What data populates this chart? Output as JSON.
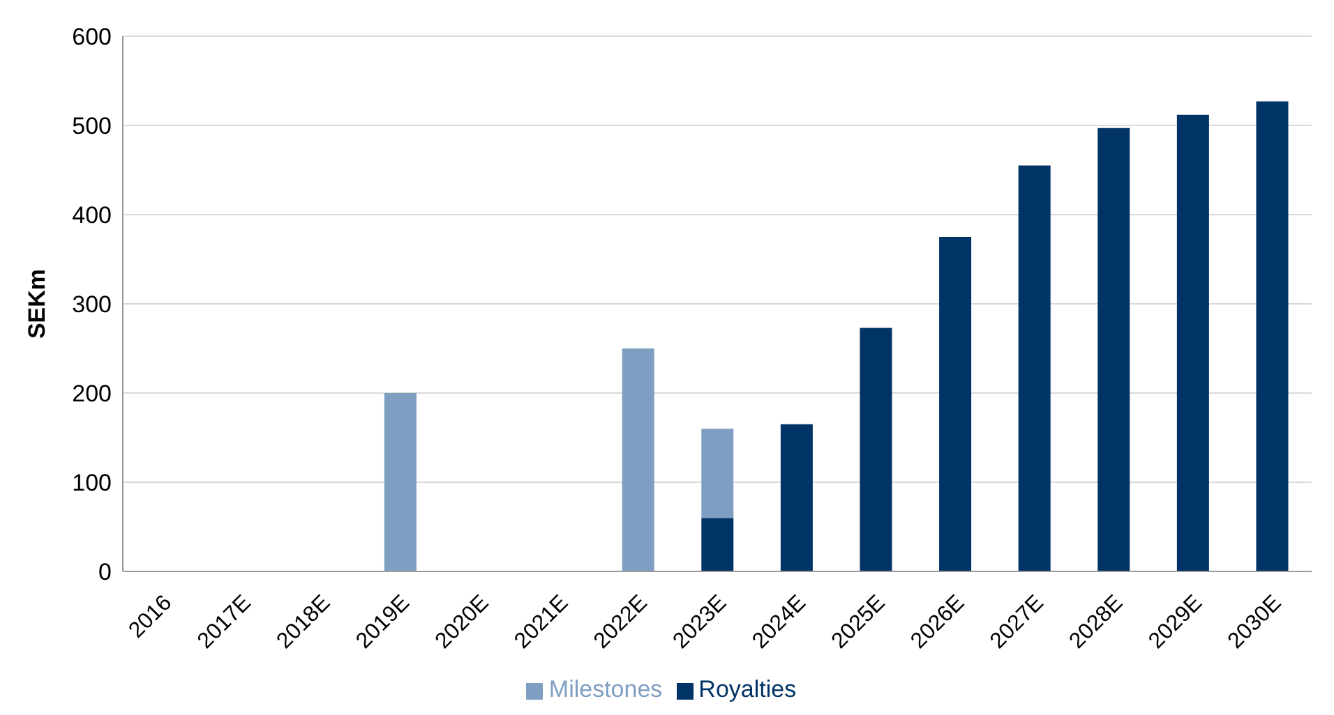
{
  "chart_data": {
    "type": "bar",
    "ylabel": "SEKm",
    "categories": [
      "2016",
      "2017E",
      "2018E",
      "2019E",
      "2020E",
      "2021E",
      "2022E",
      "2023E",
      "2024E",
      "2025E",
      "2026E",
      "2027E",
      "2028E",
      "2029E",
      "2030E"
    ],
    "series": [
      {
        "name": "Royalties",
        "color": "#003366",
        "values": [
          0,
          0,
          0,
          0,
          0,
          0,
          0,
          60,
          165,
          273,
          375,
          455,
          497,
          512,
          527
        ]
      },
      {
        "name": "Milestones",
        "color": "#7f9fc2",
        "values": [
          0,
          0,
          0,
          200,
          0,
          0,
          250,
          100,
          0,
          0,
          0,
          0,
          0,
          0,
          0
        ]
      }
    ],
    "stacked": true,
    "ylim": [
      0,
      600
    ],
    "yticks": [
      0,
      100,
      200,
      300,
      400,
      500,
      600
    ],
    "grid": "y",
    "legend": "bottom"
  }
}
